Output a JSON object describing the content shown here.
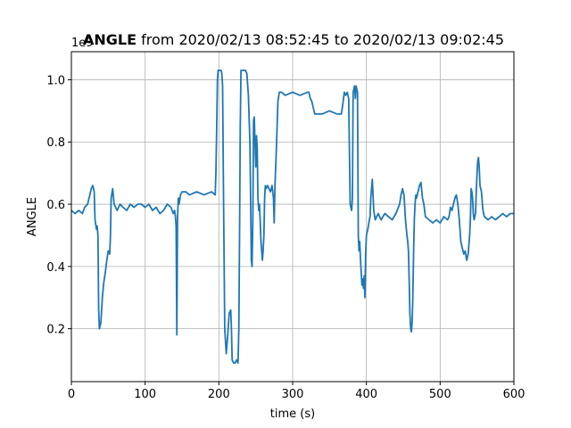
{
  "chart_data": {
    "type": "line",
    "title_bold": "ANGLE",
    "title_rest": " from 2020/02/13 08:52:45 to 2020/02/13 09:02:45",
    "xlabel": "time (s)",
    "ylabel": "ANGLE",
    "y_offset_label": "1e9",
    "xlim": [
      0,
      600
    ],
    "ylim": [
      0.03,
      1.09
    ],
    "xticks": [
      0,
      100,
      200,
      300,
      400,
      500,
      600
    ],
    "xtick_labels": [
      "0",
      "100",
      "200",
      "300",
      "400",
      "500",
      "600"
    ],
    "yticks": [
      0.2,
      0.4,
      0.6,
      0.8,
      1.0
    ],
    "ytick_labels": [
      "0.2",
      "0.4",
      "0.6",
      "0.8",
      "1.0"
    ],
    "grid": true,
    "line_color": "#1f77b4",
    "series": [
      {
        "x": [
          0,
          5,
          10,
          15,
          18,
          22,
          25,
          27,
          29,
          31,
          32,
          34,
          35,
          36,
          37,
          38,
          40,
          42,
          44,
          46,
          48,
          50,
          52,
          53,
          54,
          56,
          58,
          60,
          62,
          64,
          66,
          70,
          75,
          80,
          85,
          90,
          95,
          100,
          105,
          110,
          115,
          120,
          125,
          130,
          135,
          138,
          140,
          141,
          142,
          143,
          144,
          145,
          146,
          148,
          150,
          155,
          160,
          170,
          180,
          190,
          195,
          196,
          197,
          198,
          199,
          200,
          203,
          204,
          205,
          206,
          208,
          210,
          212,
          214,
          216,
          217,
          218,
          220,
          222,
          224,
          226,
          227,
          228,
          229,
          230,
          232,
          234,
          236,
          238,
          240,
          242,
          243,
          244,
          245,
          246,
          247,
          248,
          249,
          250,
          251,
          252,
          253,
          254,
          255,
          256,
          257,
          258,
          259,
          260,
          261,
          262,
          263,
          264,
          266,
          268,
          270,
          272,
          274,
          275,
          276,
          278,
          280,
          282,
          285,
          290,
          300,
          310,
          320,
          322,
          324,
          326,
          330,
          340,
          350,
          360,
          365,
          366,
          368,
          370,
          372,
          374,
          375,
          376,
          378,
          380,
          381,
          382,
          383,
          384,
          385,
          386,
          387,
          388,
          389,
          390,
          391,
          392,
          393,
          394,
          395,
          396,
          397,
          398,
          399,
          400,
          402,
          404,
          405,
          406,
          408,
          410,
          412,
          414,
          416,
          418,
          420,
          425,
          430,
          435,
          440,
          445,
          447,
          449,
          451,
          453,
          455,
          456,
          457,
          458,
          459,
          460,
          461,
          462,
          463,
          464,
          465,
          466,
          467,
          468,
          470,
          472,
          474,
          476,
          478,
          480,
          485,
          490,
          495,
          500,
          505,
          510,
          512,
          514,
          516,
          518,
          520,
          522,
          524,
          526,
          528,
          530,
          532,
          534,
          536,
          538,
          540,
          541,
          542,
          543,
          544,
          545,
          546,
          547,
          548,
          549,
          550,
          551,
          552,
          553,
          554,
          556,
          558,
          560,
          565,
          570,
          575,
          580,
          585,
          590,
          595,
          600
        ],
        "values": [
          0.58,
          0.57,
          0.58,
          0.57,
          0.59,
          0.6,
          0.63,
          0.65,
          0.66,
          0.64,
          0.55,
          0.52,
          0.53,
          0.5,
          0.26,
          0.2,
          0.22,
          0.3,
          0.35,
          0.38,
          0.42,
          0.45,
          0.44,
          0.5,
          0.62,
          0.65,
          0.6,
          0.59,
          0.58,
          0.59,
          0.6,
          0.59,
          0.58,
          0.6,
          0.59,
          0.6,
          0.6,
          0.59,
          0.6,
          0.58,
          0.59,
          0.57,
          0.58,
          0.6,
          0.59,
          0.57,
          0.58,
          0.56,
          0.53,
          0.18,
          0.56,
          0.62,
          0.6,
          0.63,
          0.64,
          0.64,
          0.63,
          0.64,
          0.63,
          0.64,
          0.63,
          0.7,
          0.85,
          1.0,
          1.03,
          1.03,
          1.03,
          1.02,
          0.98,
          0.7,
          0.2,
          0.12,
          0.18,
          0.25,
          0.26,
          0.2,
          0.1,
          0.09,
          0.09,
          0.1,
          0.09,
          0.2,
          0.5,
          0.85,
          1.03,
          1.03,
          1.03,
          1.03,
          1.02,
          0.95,
          0.8,
          0.62,
          0.42,
          0.4,
          0.55,
          0.87,
          0.88,
          0.8,
          0.72,
          0.82,
          0.78,
          0.62,
          0.58,
          0.6,
          0.55,
          0.48,
          0.45,
          0.42,
          0.45,
          0.5,
          0.62,
          0.66,
          0.65,
          0.66,
          0.65,
          0.64,
          0.66,
          0.62,
          0.54,
          0.66,
          0.78,
          0.93,
          0.96,
          0.96,
          0.95,
          0.96,
          0.95,
          0.96,
          0.96,
          0.94,
          0.93,
          0.89,
          0.89,
          0.9,
          0.89,
          0.89,
          0.89,
          0.92,
          0.96,
          0.95,
          0.96,
          0.95,
          0.94,
          0.6,
          0.58,
          0.62,
          0.96,
          0.97,
          0.98,
          0.94,
          0.98,
          0.97,
          0.96,
          0.5,
          0.45,
          0.48,
          0.42,
          0.38,
          0.34,
          0.36,
          0.33,
          0.37,
          0.3,
          0.44,
          0.5,
          0.52,
          0.55,
          0.56,
          0.62,
          0.68,
          0.58,
          0.55,
          0.56,
          0.57,
          0.56,
          0.55,
          0.57,
          0.56,
          0.55,
          0.57,
          0.6,
          0.63,
          0.65,
          0.63,
          0.55,
          0.5,
          0.48,
          0.45,
          0.36,
          0.25,
          0.2,
          0.19,
          0.22,
          0.3,
          0.45,
          0.55,
          0.6,
          0.63,
          0.62,
          0.64,
          0.66,
          0.67,
          0.62,
          0.6,
          0.56,
          0.55,
          0.54,
          0.55,
          0.54,
          0.56,
          0.55,
          0.56,
          0.59,
          0.58,
          0.6,
          0.62,
          0.63,
          0.6,
          0.55,
          0.48,
          0.46,
          0.44,
          0.45,
          0.42,
          0.44,
          0.5,
          0.55,
          0.65,
          0.64,
          0.62,
          0.57,
          0.55,
          0.56,
          0.57,
          0.64,
          0.7,
          0.74,
          0.75,
          0.72,
          0.66,
          0.64,
          0.58,
          0.56,
          0.55,
          0.56,
          0.55,
          0.56,
          0.57,
          0.56,
          0.57,
          0.57
        ]
      }
    ]
  }
}
